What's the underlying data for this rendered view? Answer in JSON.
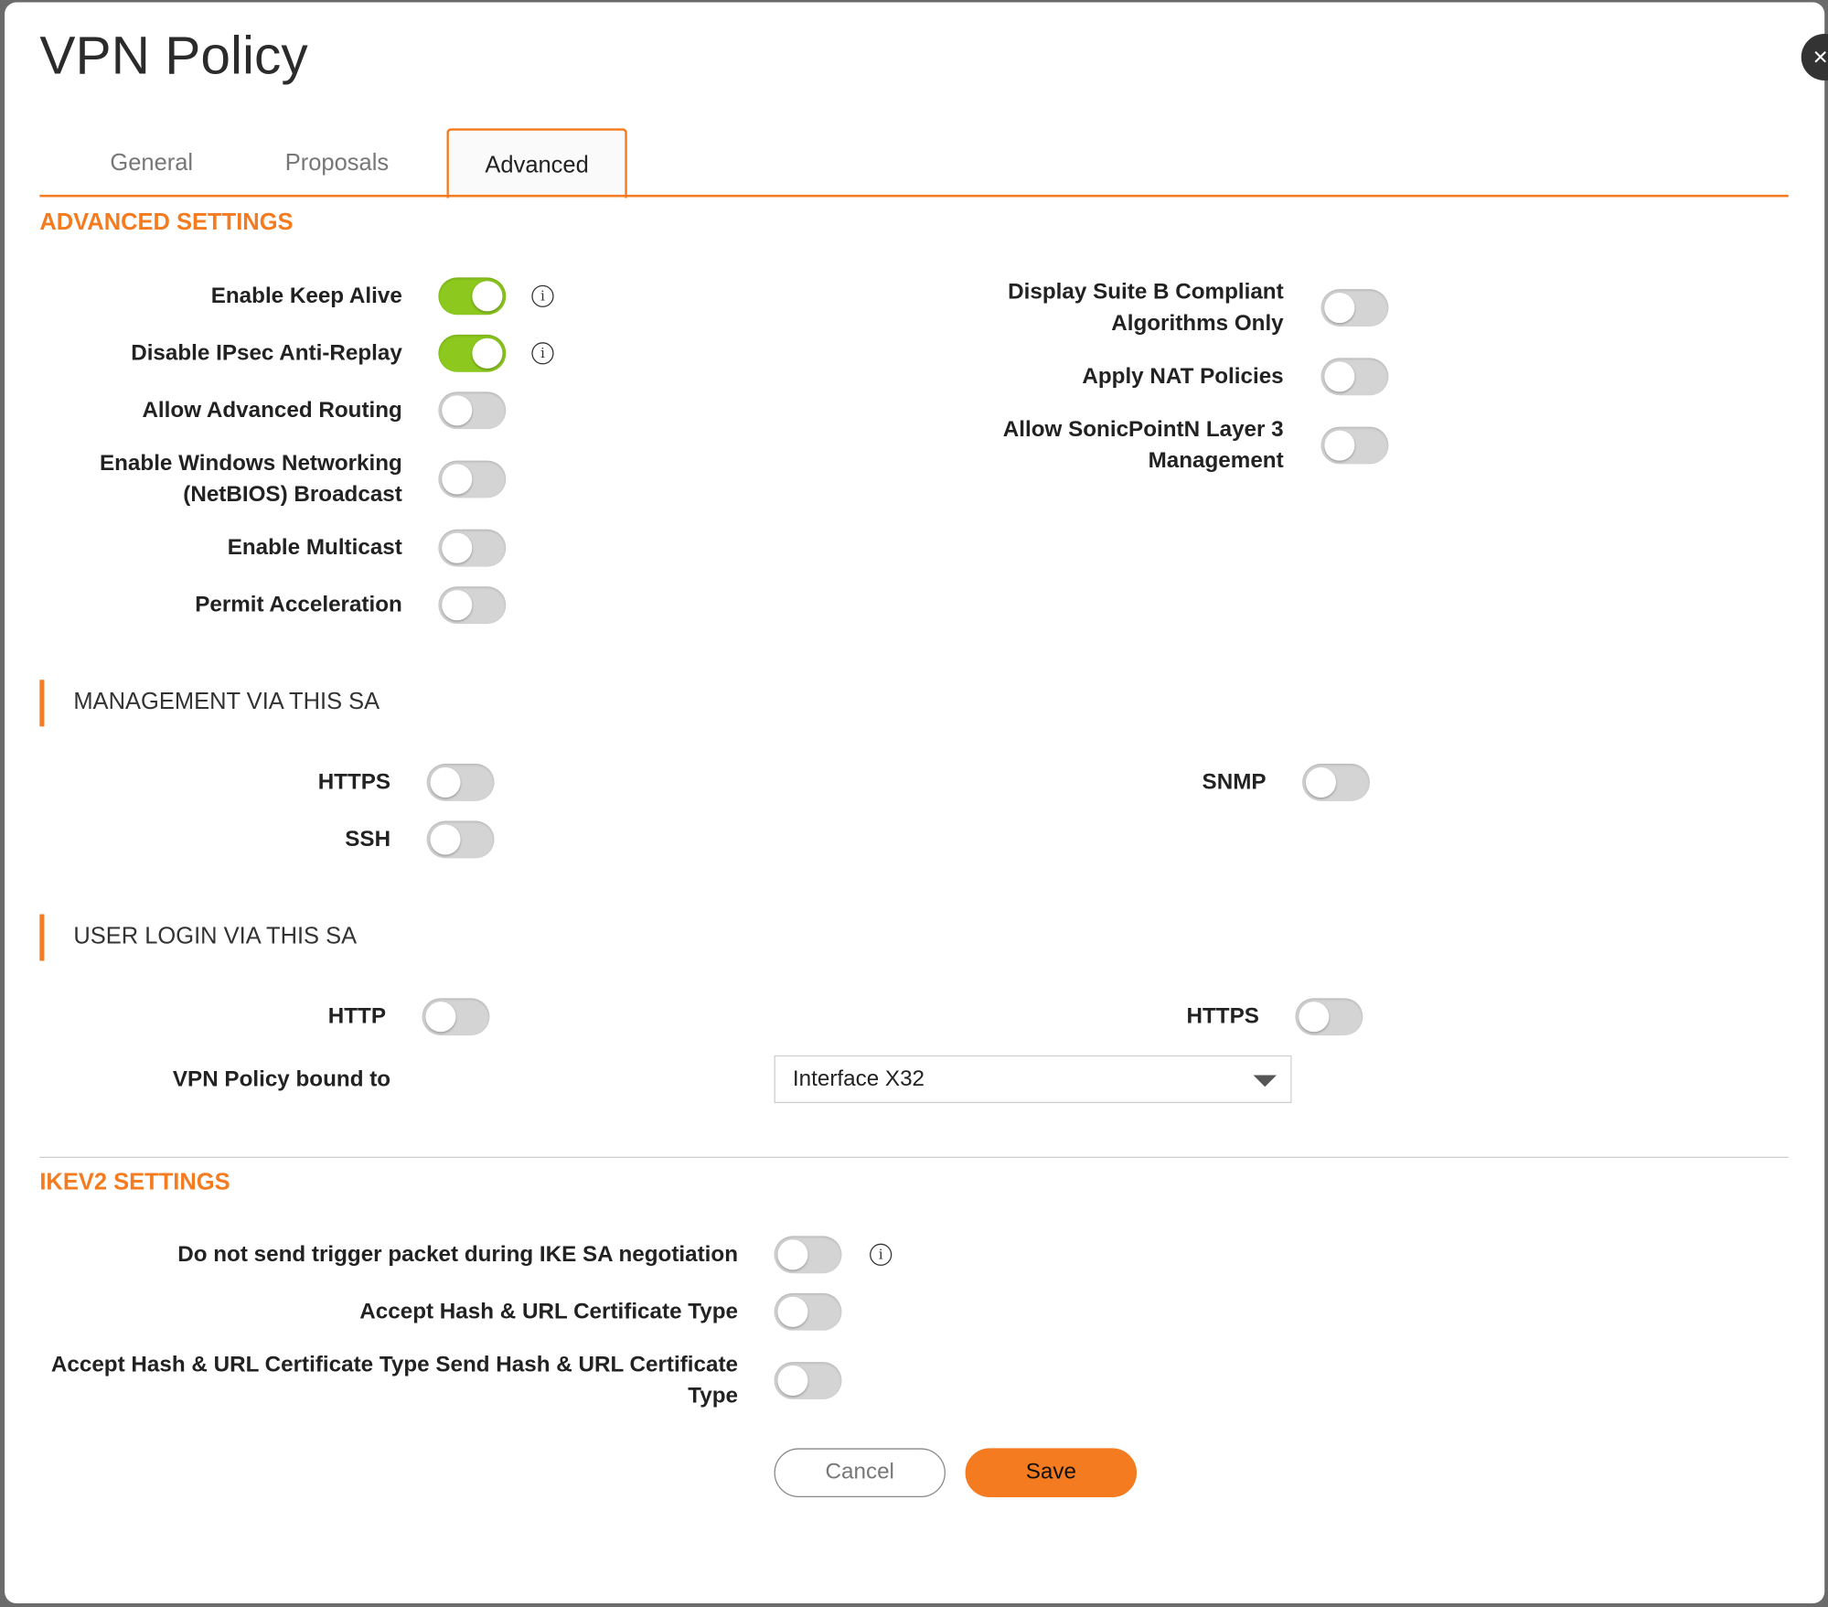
{
  "title": "VPN Policy",
  "tabs": [
    {
      "label": "General"
    },
    {
      "label": "Proposals"
    },
    {
      "label": "Advanced",
      "active": true
    }
  ],
  "advanced": {
    "heading": "ADVANCED SETTINGS",
    "left": [
      {
        "label": "Enable Keep Alive",
        "on": true,
        "info": true
      },
      {
        "label": "Disable IPsec Anti-Replay",
        "on": true,
        "info": true
      },
      {
        "label": "Allow Advanced Routing",
        "on": false
      },
      {
        "label": "Enable Windows Networking (NetBIOS) Broadcast",
        "on": false
      },
      {
        "label": "Enable Multicast",
        "on": false
      },
      {
        "label": "Permit Acceleration",
        "on": false
      }
    ],
    "right": [
      {
        "label": "Display Suite B Compliant Algorithms Only",
        "on": false
      },
      {
        "label": "Apply NAT Policies",
        "on": false
      },
      {
        "label": "Allow SonicPointN Layer 3 Management",
        "on": false
      }
    ]
  },
  "management": {
    "heading": "MANAGEMENT VIA THIS SA",
    "https": {
      "label": "HTTPS",
      "on": false
    },
    "ssh": {
      "label": "SSH",
      "on": false
    },
    "snmp": {
      "label": "SNMP",
      "on": false
    }
  },
  "user_login": {
    "heading": "USER LOGIN VIA THIS SA",
    "http": {
      "label": "HTTP",
      "on": false
    },
    "https": {
      "label": "HTTPS",
      "on": false
    }
  },
  "bound": {
    "label": "VPN Policy bound to",
    "value": "Interface X32"
  },
  "ikev2": {
    "heading": "IKEV2 SETTINGS",
    "rows": [
      {
        "label": "Do not send trigger packet during IKE SA negotiation",
        "on": false,
        "info": true
      },
      {
        "label": "Accept Hash & URL Certificate Type",
        "on": false
      },
      {
        "label": "Accept Hash & URL Certificate Type Send Hash & URL Certificate Type",
        "on": false
      }
    ]
  },
  "buttons": {
    "cancel": "Cancel",
    "save": "Save"
  },
  "icons": {
    "info": "i",
    "close": "×"
  },
  "colors": {
    "accent": "#f47b20",
    "toggle_on": "#8cc81e",
    "toggle_off": "#d4d4d4"
  }
}
